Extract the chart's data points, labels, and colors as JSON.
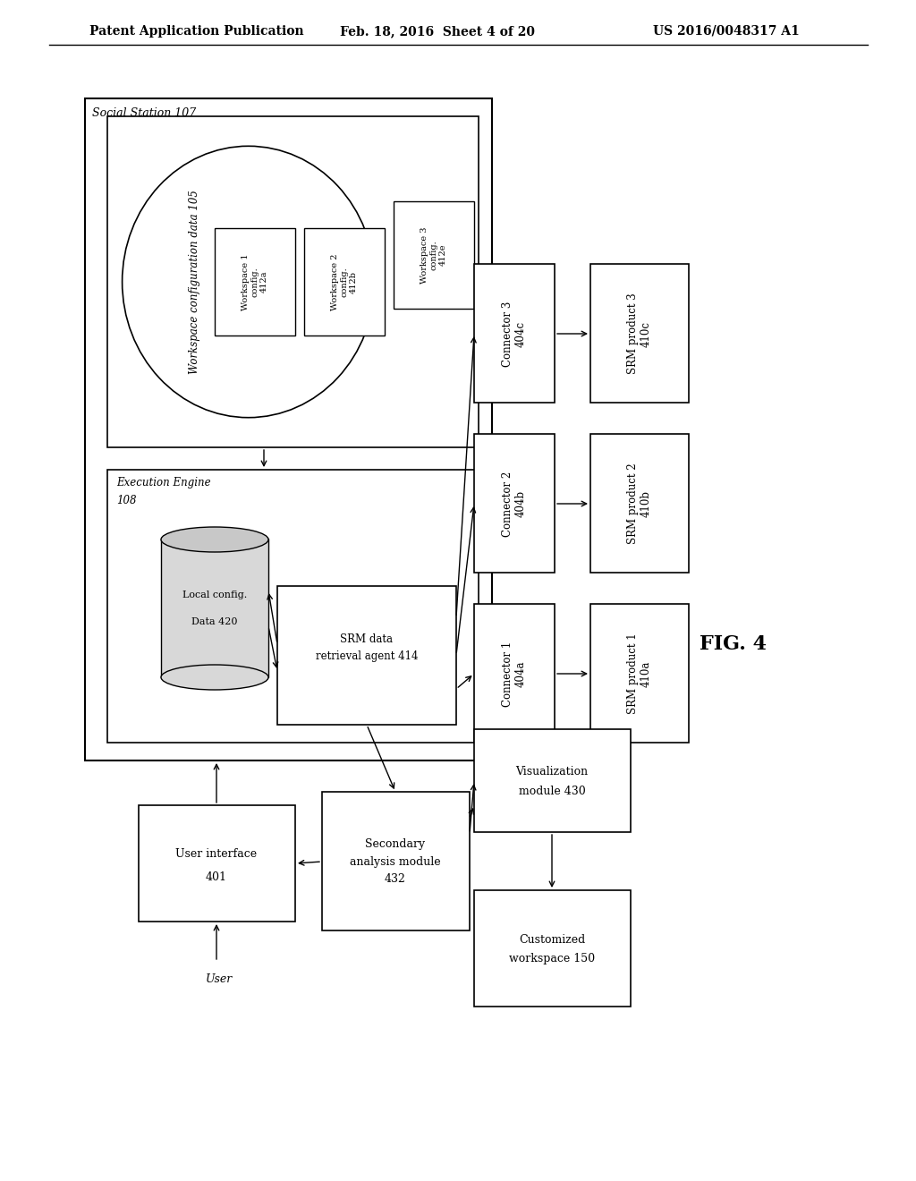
{
  "title_header": "Patent Application Publication",
  "title_date": "Feb. 18, 2016  Sheet 4 of 20",
  "title_patent": "US 2016/0048317 A1",
  "fig_label": "FIG. 4",
  "background_color": "#ffffff",
  "box_color": "#ffffff",
  "box_edge_color": "#000000",
  "text_color": "#000000"
}
